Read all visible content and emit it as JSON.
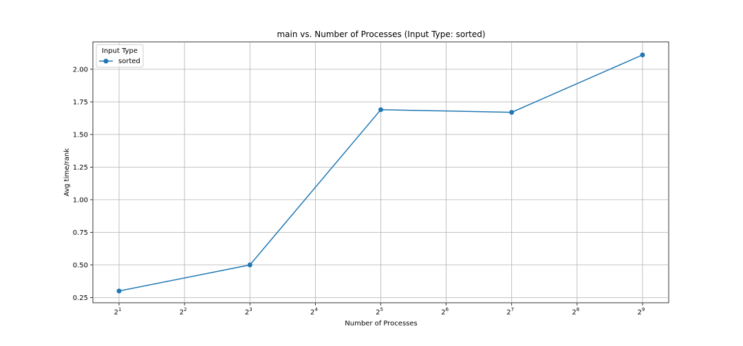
{
  "chart_data": {
    "type": "line",
    "title": "main vs. Number of Processes (Input Type: sorted)",
    "xlabel": "Number of Processes",
    "ylabel": "Avg time/rank",
    "x_scale": "log2",
    "x_tick_base": "2",
    "x_tick_exponents": [
      "1",
      "2",
      "3",
      "4",
      "5",
      "6",
      "7",
      "8",
      "9"
    ],
    "y_ticks": [
      "0.25",
      "0.50",
      "0.75",
      "1.00",
      "1.25",
      "1.50",
      "1.75",
      "2.00"
    ],
    "grid": true,
    "legend": {
      "title": "Input Type",
      "placement": "top-left"
    },
    "series": [
      {
        "name": "sorted",
        "color": "#1f77b4",
        "marker": "circle",
        "x": [
          2,
          8,
          32,
          128,
          512
        ],
        "y": [
          0.3,
          0.5,
          1.69,
          1.67,
          2.11
        ]
      }
    ]
  }
}
